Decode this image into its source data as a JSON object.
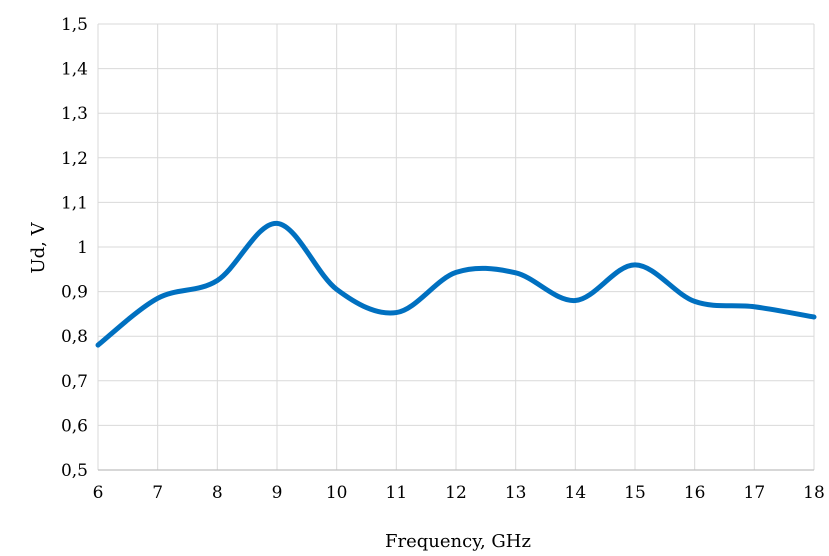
{
  "chart_data": {
    "type": "line",
    "title": "",
    "xlabel": "Frequency, GHz",
    "ylabel": "Ud, V",
    "xlim": [
      6,
      18
    ],
    "ylim": [
      0.5,
      1.5
    ],
    "x_ticks": [
      "6",
      "7",
      "8",
      "9",
      "10",
      "11",
      "12",
      "13",
      "14",
      "15",
      "16",
      "17",
      "18"
    ],
    "y_ticks": [
      "0,5",
      "0,6",
      "0,7",
      "0,8",
      "0,9",
      "1",
      "1,1",
      "1,2",
      "1,3",
      "1,4",
      "1,5"
    ],
    "grid": true,
    "legend": "none",
    "series": [
      {
        "color": "#0070C0",
        "x": [
          6,
          7,
          8,
          9,
          10,
          11,
          12,
          13,
          14,
          15,
          16,
          17,
          18
        ],
        "y": [
          0.78,
          0.885,
          0.925,
          1.053,
          0.905,
          0.853,
          0.943,
          0.942,
          0.88,
          0.96,
          0.878,
          0.866,
          0.843
        ]
      }
    ]
  }
}
